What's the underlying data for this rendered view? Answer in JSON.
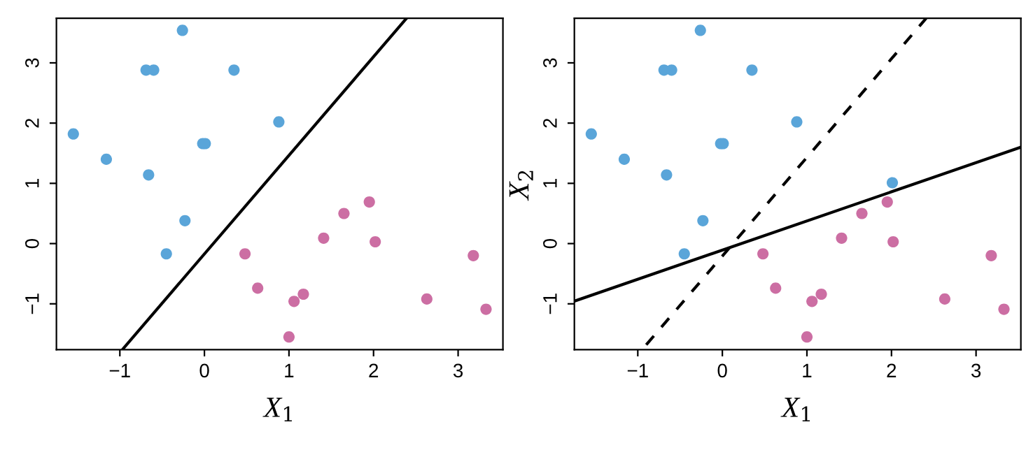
{
  "chart_data": [
    {
      "type": "scatter",
      "xlabel": "X$_{1}$",
      "xlim": [
        -1.75,
        3.53
      ],
      "ylim": [
        -1.76,
        3.74
      ],
      "xticks": [
        -1,
        0,
        1,
        2,
        3
      ],
      "yticks": [
        -1,
        0,
        1,
        2,
        3
      ],
      "grid": false,
      "series": [
        {
          "color": "#5aa5d9",
          "marker": "circle",
          "x": [
            -0.26,
            -0.69,
            -0.6,
            0.35,
            0.88,
            -1.55,
            -0.02,
            0.01,
            -1.16,
            -0.66,
            -0.23,
            -0.45
          ],
          "values": [
            3.54,
            2.88,
            2.88,
            2.88,
            2.02,
            1.82,
            1.66,
            1.66,
            1.4,
            1.14,
            0.38,
            -0.17
          ]
        },
        {
          "color": "#cc6ea3",
          "marker": "circle",
          "x": [
            0.48,
            1.65,
            1.95,
            1.41,
            2.02,
            3.18,
            0.63,
            1.17,
            1.06,
            2.63,
            3.33,
            1.0
          ],
          "values": [
            -0.17,
            0.5,
            0.69,
            0.09,
            0.03,
            -0.2,
            -0.74,
            -0.84,
            -0.96,
            -0.92,
            -1.09,
            -1.55
          ]
        },
        {
          "type": "line",
          "color": "#000000",
          "marker": "none",
          "line_style": "solid",
          "x": [
            -0.97,
            2.39
          ],
          "values": [
            -1.76,
            3.74
          ]
        }
      ]
    },
    {
      "type": "scatter",
      "xlabel": "X$_{1}$",
      "ylabel": "X$_{2}$",
      "xlim": [
        -1.75,
        3.53
      ],
      "ylim": [
        -1.76,
        3.74
      ],
      "xticks": [
        -1,
        0,
        1,
        2,
        3
      ],
      "yticks": [
        -1,
        0,
        1,
        2,
        3
      ],
      "grid": false,
      "series": [
        {
          "color": "#5aa5d9",
          "marker": "circle",
          "x": [
            -0.26,
            -0.69,
            -0.6,
            0.35,
            0.88,
            -1.55,
            -0.02,
            0.01,
            -1.16,
            -0.66,
            -0.23,
            -0.45,
            2.01
          ],
          "values": [
            3.54,
            2.88,
            2.88,
            2.88,
            2.02,
            1.82,
            1.66,
            1.66,
            1.4,
            1.14,
            0.38,
            -0.17,
            1.01
          ]
        },
        {
          "color": "#cc6ea3",
          "marker": "circle",
          "x": [
            0.48,
            1.65,
            1.95,
            1.41,
            2.02,
            3.18,
            0.63,
            1.17,
            1.06,
            2.63,
            3.33,
            1.0
          ],
          "values": [
            -0.17,
            0.5,
            0.69,
            0.09,
            0.03,
            -0.2,
            -0.74,
            -0.84,
            -0.96,
            -0.92,
            -1.09,
            -1.55
          ]
        },
        {
          "type": "line",
          "color": "#000000",
          "marker": "none",
          "line_style": "solid",
          "x": [
            -1.74,
            3.53
          ],
          "values": [
            -0.95,
            1.6
          ]
        },
        {
          "type": "line",
          "color": "#000000",
          "marker": "none",
          "line_style": "dashed",
          "x": [
            -0.9,
            2.41
          ],
          "values": [
            -1.68,
            3.74
          ]
        }
      ]
    }
  ]
}
